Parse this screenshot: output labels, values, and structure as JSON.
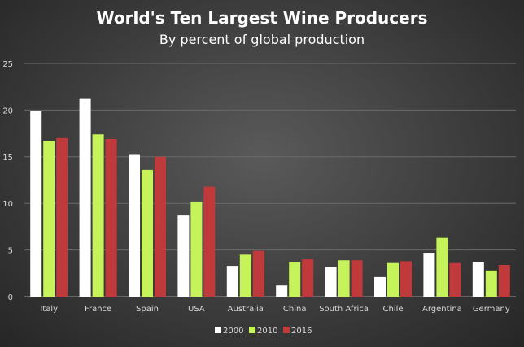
{
  "chart_data": {
    "type": "bar",
    "title": "World's Ten Largest Wine Producers",
    "subtitle": "By percent of global production",
    "xlabel": "",
    "ylabel": "",
    "ylim": [
      0,
      25
    ],
    "yticks": [
      0,
      5,
      10,
      15,
      20,
      25
    ],
    "grid": true,
    "legend_position": "bottom",
    "categories": [
      "Italy",
      "France",
      "Spain",
      "USA",
      "Australia",
      "China",
      "South Africa",
      "Chile",
      "Argentina",
      "Germany"
    ],
    "series": [
      {
        "name": "2000",
        "color": "#ffffff",
        "values": [
          19.9,
          21.2,
          15.2,
          8.7,
          3.3,
          1.2,
          3.2,
          2.1,
          4.7,
          3.7
        ]
      },
      {
        "name": "2010",
        "color": "#c6f35a",
        "values": [
          16.7,
          17.4,
          13.6,
          10.2,
          4.5,
          3.7,
          3.9,
          3.6,
          6.3,
          2.8
        ]
      },
      {
        "name": "2016",
        "color": "#c0393b",
        "values": [
          17.0,
          16.9,
          15.0,
          11.8,
          4.9,
          4.0,
          3.9,
          3.8,
          3.6,
          3.4
        ]
      }
    ]
  }
}
